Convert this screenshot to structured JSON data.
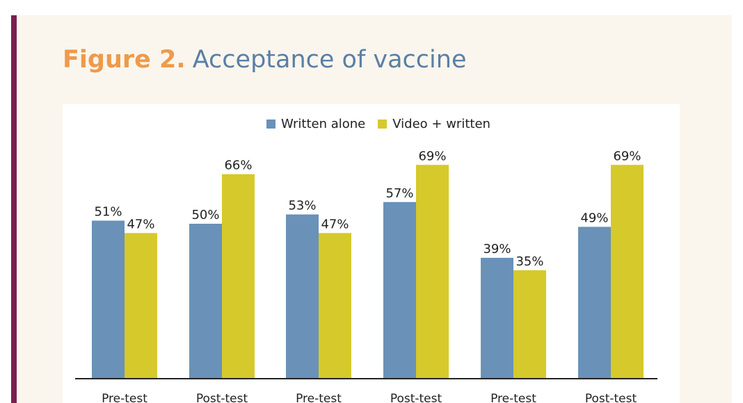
{
  "figure": {
    "label": "Figure 2.",
    "title": "Acceptance of vaccine"
  },
  "colors": {
    "accent_bar": "#7a1f4f",
    "background": "#faf6ee",
    "figure_label": "#ef9a4a",
    "figure_title": "#5a7fa5"
  },
  "legend": {
    "position": "top-center",
    "items": [
      {
        "label": "Written alone",
        "color": "#6a91b8"
      },
      {
        "label": "Video + written",
        "color": "#d5c92c"
      }
    ]
  },
  "chart_data": {
    "type": "bar",
    "title": "Acceptance of vaccine",
    "categories": [
      "Pre-test",
      "Post-test",
      "Pre-test",
      "Post-test",
      "Pre-test",
      "Post-test"
    ],
    "series": [
      {
        "name": "Written alone",
        "values": [
          51,
          50,
          53,
          57,
          39,
          49
        ],
        "labels": [
          "51%",
          "50%",
          "53%",
          "57%",
          "39%",
          "49%"
        ],
        "color": "#6a91b8"
      },
      {
        "name": "Video + written",
        "values": [
          47,
          66,
          47,
          69,
          35,
          69
        ],
        "labels": [
          "47%",
          "66%",
          "47%",
          "69%",
          "35%",
          "69%"
        ],
        "color": "#d5c92c"
      }
    ],
    "xlabel": "",
    "ylabel": "",
    "ylim": [
      0,
      100
    ],
    "grid": false,
    "legend_position": "top-center"
  }
}
